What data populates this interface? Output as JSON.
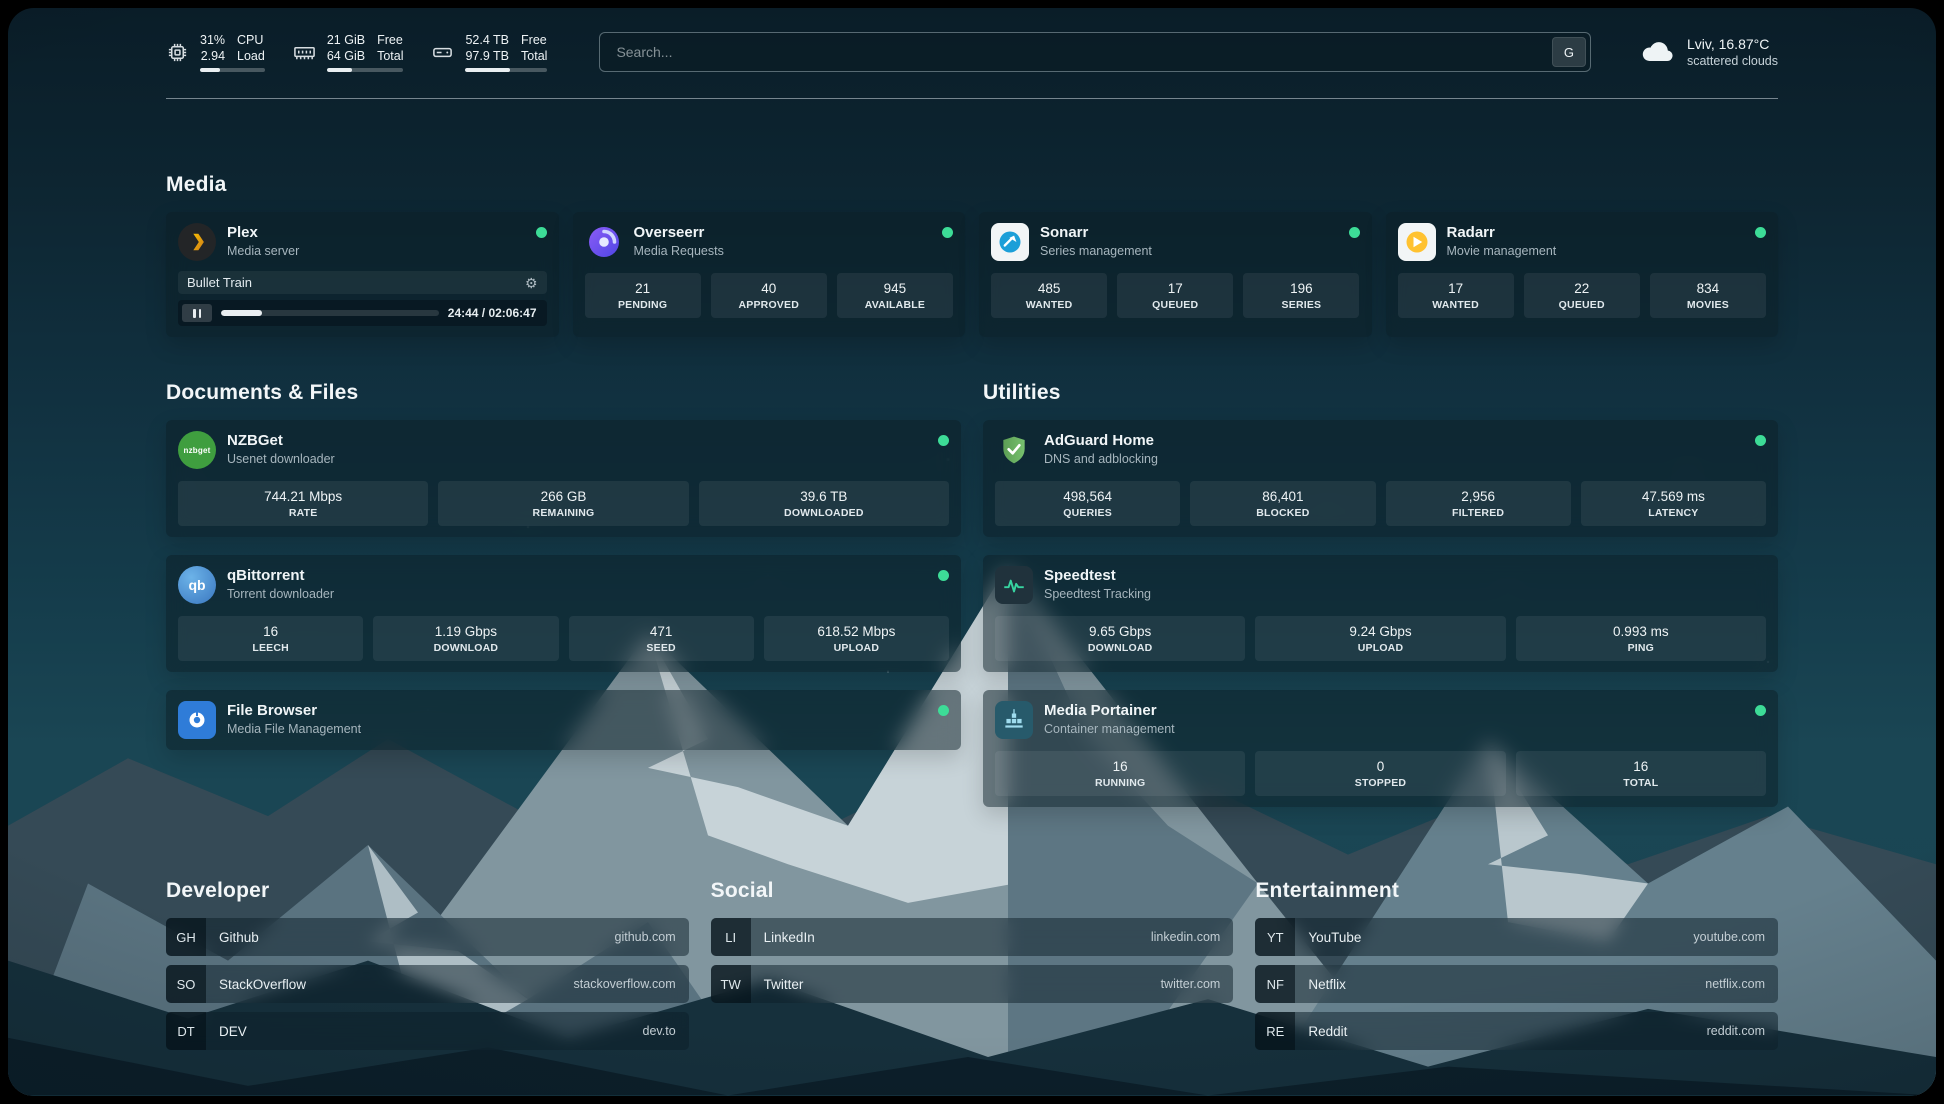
{
  "topbar": {
    "cpu_widget": {
      "values": [
        "31%",
        "2.94"
      ],
      "labels": [
        "CPU",
        "Load"
      ],
      "percent": 31
    },
    "ram_widget": {
      "values": [
        "21 GiB",
        "64 GiB"
      ],
      "labels": [
        "Free",
        "Total"
      ],
      "percent": 33
    },
    "disk_widget": {
      "values": [
        "52.4 TB",
        "97.9 TB"
      ],
      "labels": [
        "Free",
        "Total"
      ],
      "percent": 54
    },
    "search": {
      "placeholder": "Search...",
      "button_label": "G"
    },
    "weather": {
      "location": "Lviv, 16.87°C",
      "condition": "scattered clouds"
    }
  },
  "sections": {
    "media": {
      "title": "Media"
    },
    "documents": {
      "title": "Documents & Files"
    },
    "utilities": {
      "title": "Utilities"
    },
    "developer": {
      "title": "Developer"
    },
    "social": {
      "title": "Social"
    },
    "entertainment": {
      "title": "Entertainment"
    }
  },
  "apps": {
    "plex": {
      "name": "Plex",
      "subtitle": "Media server",
      "now_playing": "Bullet Train",
      "time": "24:44 / 02:06:47",
      "progress_percent": 19
    },
    "overseerr": {
      "name": "Overseerr",
      "subtitle": "Media Requests",
      "stats": [
        {
          "value": "21",
          "label": "PENDING"
        },
        {
          "value": "40",
          "label": "APPROVED"
        },
        {
          "value": "945",
          "label": "AVAILABLE"
        }
      ]
    },
    "sonarr": {
      "name": "Sonarr",
      "subtitle": "Series management",
      "stats": [
        {
          "value": "485",
          "label": "WANTED"
        },
        {
          "value": "17",
          "label": "QUEUED"
        },
        {
          "value": "196",
          "label": "SERIES"
        }
      ]
    },
    "radarr": {
      "name": "Radarr",
      "subtitle": "Movie management",
      "stats": [
        {
          "value": "17",
          "label": "WANTED"
        },
        {
          "value": "22",
          "label": "QUEUED"
        },
        {
          "value": "834",
          "label": "MOVIES"
        }
      ]
    },
    "nzbget": {
      "name": "NZBGet",
      "subtitle": "Usenet downloader",
      "stats": [
        {
          "value": "744.21 Mbps",
          "label": "RATE"
        },
        {
          "value": "266 GB",
          "label": "REMAINING"
        },
        {
          "value": "39.6 TB",
          "label": "DOWNLOADED"
        }
      ]
    },
    "qbittorrent": {
      "name": "qBittorrent",
      "subtitle": "Torrent downloader",
      "stats": [
        {
          "value": "16",
          "label": "LEECH"
        },
        {
          "value": "1.19 Gbps",
          "label": "DOWNLOAD"
        },
        {
          "value": "471",
          "label": "SEED"
        },
        {
          "value": "618.52 Mbps",
          "label": "UPLOAD"
        }
      ]
    },
    "filebrowser": {
      "name": "File Browser",
      "subtitle": "Media File Management"
    },
    "adguard": {
      "name": "AdGuard Home",
      "subtitle": "DNS and adblocking",
      "stats": [
        {
          "value": "498,564",
          "label": "QUERIES"
        },
        {
          "value": "86,401",
          "label": "BLOCKED"
        },
        {
          "value": "2,956",
          "label": "FILTERED"
        },
        {
          "value": "47.569 ms",
          "label": "LATENCY"
        }
      ]
    },
    "speedtest": {
      "name": "Speedtest",
      "subtitle": "Speedtest Tracking",
      "stats": [
        {
          "value": "9.65 Gbps",
          "label": "DOWNLOAD"
        },
        {
          "value": "9.24 Gbps",
          "label": "UPLOAD"
        },
        {
          "value": "0.993 ms",
          "label": "PING"
        }
      ]
    },
    "portainer": {
      "name": "Media Portainer",
      "subtitle": "Container management",
      "stats": [
        {
          "value": "16",
          "label": "RUNNING"
        },
        {
          "value": "0",
          "label": "STOPPED"
        },
        {
          "value": "16",
          "label": "TOTAL"
        }
      ]
    }
  },
  "bookmarks": {
    "developer": [
      {
        "abbr": "GH",
        "name": "Github",
        "url": "github.com"
      },
      {
        "abbr": "SO",
        "name": "StackOverflow",
        "url": "stackoverflow.com"
      },
      {
        "abbr": "DT",
        "name": "DEV",
        "url": "dev.to"
      }
    ],
    "social": [
      {
        "abbr": "LI",
        "name": "LinkedIn",
        "url": "linkedin.com"
      },
      {
        "abbr": "TW",
        "name": "Twitter",
        "url": "twitter.com"
      }
    ],
    "entertainment": [
      {
        "abbr": "YT",
        "name": "YouTube",
        "url": "youtube.com"
      },
      {
        "abbr": "NF",
        "name": "Netflix",
        "url": "netflix.com"
      },
      {
        "abbr": "RE",
        "name": "Reddit",
        "url": "reddit.com"
      }
    ]
  },
  "colors": {
    "status_green": "#3ddc97",
    "plex_yellow": "#e5a00d",
    "overseerr_purple": "#6d5bf5",
    "sonarr_blue": "#1c9fd8",
    "radarr_orange": "#ffc230",
    "nzbget_green": "#3f9e3f",
    "qbittorrent_blue": "#4a8fd4",
    "filebrowser_blue": "#2f7cd8",
    "adguard_green": "#68b35c",
    "speedtest_green": "#37d4a0",
    "portainer_teal": "#3fb5d6"
  }
}
